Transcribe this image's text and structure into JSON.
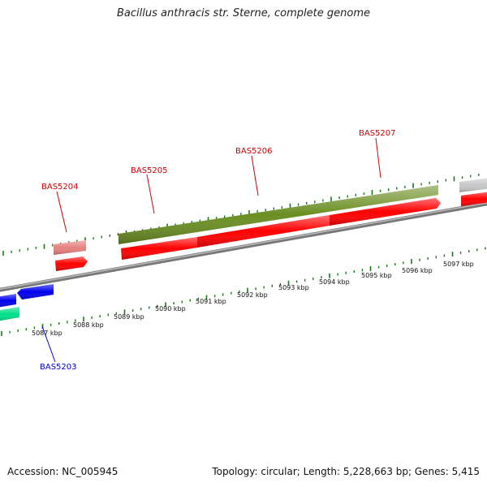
{
  "title": "Bacillus anthracis str. Sterne, complete genome",
  "footer": {
    "accession": "Accession: NC_005945",
    "summary": "Topology: circular; Length: 5,228,663 bp; Genes: 5,415"
  },
  "colors": {
    "backbone": "#8c8c8c",
    "tick": "#1a7a1a",
    "label_red": "#cc0000",
    "label_blue": "#0000cc",
    "gene_red": "#ff0000",
    "gene_olive": "#6b8e23",
    "gene_pink": "#e88080",
    "gene_blue": "#0000ee",
    "gene_teal": "#00e08a",
    "gene_gray": "#c8c8c8"
  },
  "gene_labels": [
    {
      "id": "BAS5203",
      "color": "blue"
    },
    {
      "id": "BAS5204",
      "color": "red"
    },
    {
      "id": "BAS5205",
      "color": "red"
    },
    {
      "id": "BAS5206",
      "color": "red"
    },
    {
      "id": "BAS5207",
      "color": "red"
    }
  ],
  "scale_labels": [
    "5087 kbp",
    "5088 kbp",
    "5089 kbp",
    "5090 kbp",
    "5091 kbp",
    "5092 kbp",
    "5093 kbp",
    "5094 kbp",
    "5095 kbp",
    "5096 kbp",
    "5097 kbp"
  ]
}
